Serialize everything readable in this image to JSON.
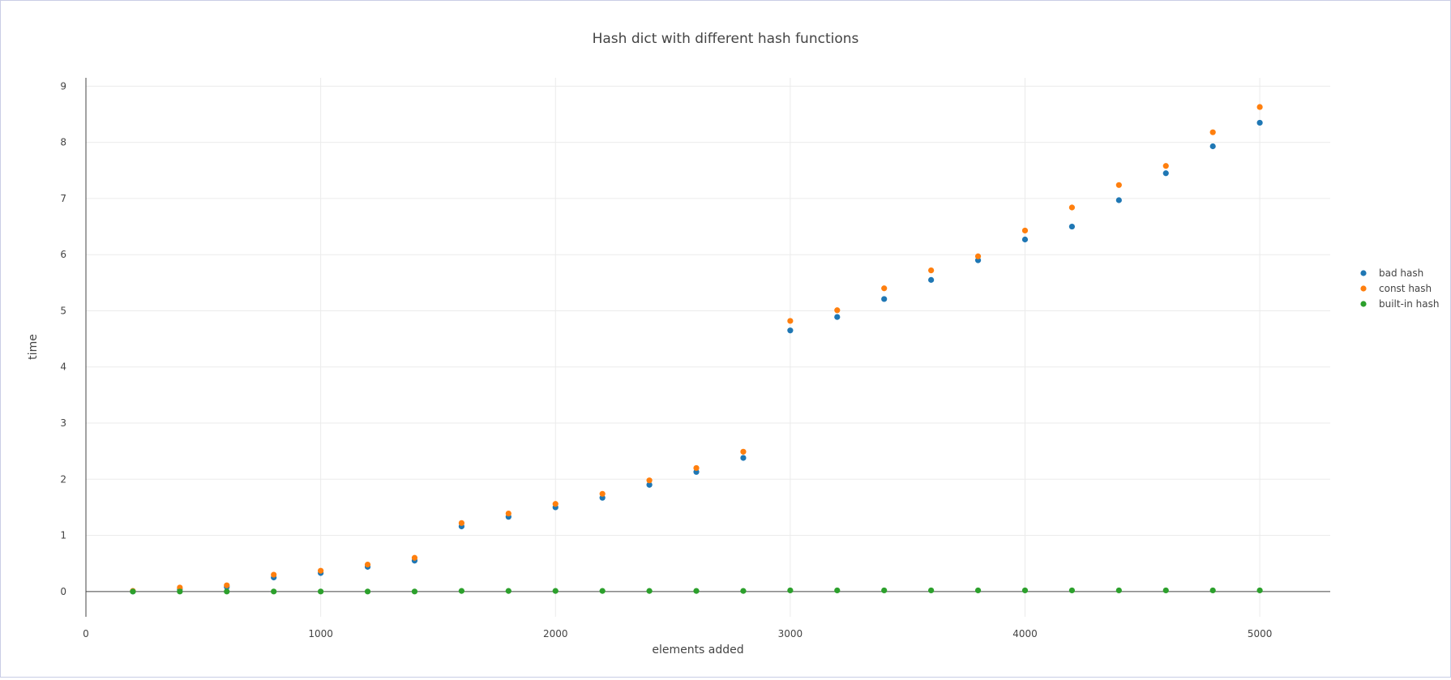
{
  "chart_data": {
    "type": "scatter",
    "title": "Hash dict with different hash functions",
    "xlabel": "elements added",
    "ylabel": "time",
    "xlim": [
      0,
      5300
    ],
    "ylim": [
      -0.45,
      9.15
    ],
    "xticks": [
      0,
      1000,
      2000,
      3000,
      4000,
      5000
    ],
    "yticks": [
      0,
      1,
      2,
      3,
      4,
      5,
      6,
      7,
      8,
      9
    ],
    "grid": true,
    "legend_position": "right",
    "x": [
      200,
      400,
      600,
      800,
      1000,
      1200,
      1400,
      1600,
      1800,
      2000,
      2200,
      2400,
      2600,
      2800,
      3000,
      3200,
      3400,
      3600,
      3800,
      4000,
      4200,
      4400,
      4600,
      4800,
      5000
    ],
    "series": [
      {
        "name": "bad hash",
        "color": "#1f77b4",
        "values": [
          0.0,
          0.04,
          0.08,
          0.25,
          0.33,
          0.44,
          0.55,
          1.16,
          1.33,
          1.5,
          1.67,
          1.9,
          2.13,
          2.38,
          4.65,
          4.89,
          5.21,
          5.55,
          5.9,
          6.27,
          6.5,
          6.97,
          7.45,
          7.93,
          8.35
        ]
      },
      {
        "name": "const hash",
        "color": "#ff7f0e",
        "values": [
          0.01,
          0.07,
          0.11,
          0.3,
          0.37,
          0.48,
          0.6,
          1.22,
          1.39,
          1.56,
          1.74,
          1.98,
          2.2,
          2.49,
          4.82,
          5.01,
          5.4,
          5.72,
          5.97,
          6.43,
          6.84,
          7.24,
          7.58,
          8.18,
          8.63
        ]
      },
      {
        "name": "built-in hash",
        "color": "#2ca02c",
        "values": [
          0.0,
          0.0,
          0.0,
          0.0,
          0.0,
          0.0,
          0.0,
          0.01,
          0.01,
          0.01,
          0.01,
          0.01,
          0.01,
          0.01,
          0.02,
          0.02,
          0.02,
          0.02,
          0.02,
          0.02,
          0.02,
          0.02,
          0.02,
          0.02,
          0.02
        ]
      }
    ]
  }
}
